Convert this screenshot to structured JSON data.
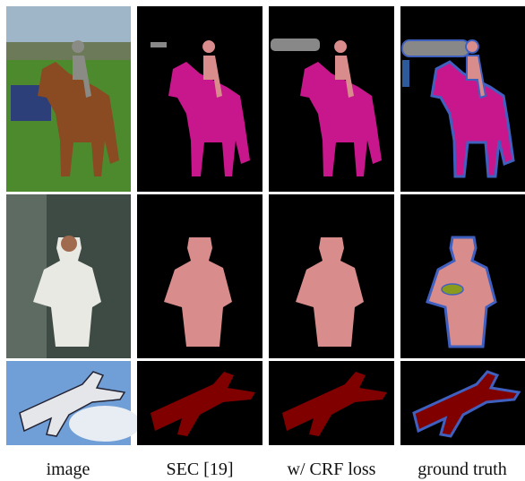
{
  "captions": [
    "image",
    "SEC [19]",
    "w/ CRF loss",
    "ground truth"
  ]
}
